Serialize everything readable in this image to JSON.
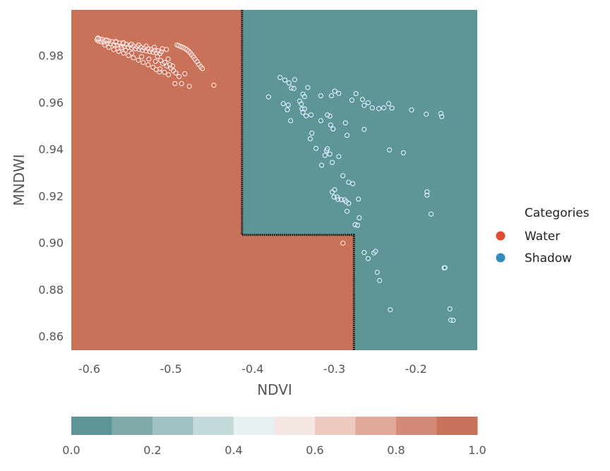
{
  "chart_data": {
    "type": "scatter",
    "xlabel": "NDVI",
    "ylabel": "MNDWI",
    "xlim": [
      -0.622,
      -0.125
    ],
    "ylim": [
      0.854,
      0.9995
    ],
    "xticks": [
      "-0.6",
      "-0.5",
      "-0.4",
      "-0.3",
      "-0.2"
    ],
    "yticks": [
      "0.86",
      "0.88",
      "0.90",
      "0.92",
      "0.94",
      "0.96",
      "0.98"
    ],
    "grid": false,
    "background": {
      "description": "decision regions: Water probability 1.0 (left/bottom), 0.0 (upper right)",
      "boundary": [
        [
          -0.413,
          0.9995
        ],
        [
          -0.413,
          0.9033
        ],
        [
          -0.276,
          0.9033
        ],
        [
          -0.276,
          0.854
        ]
      ],
      "water_color": "#c97159",
      "shadow_color": "#5e9698",
      "boundary_color": "#111111"
    },
    "legend": {
      "title": "Categories",
      "position": "right",
      "entries": [
        {
          "label": "Water",
          "color": "#e24a33"
        },
        {
          "label": "Shadow",
          "color": "#348abd"
        }
      ]
    },
    "series": [
      {
        "name": "Water",
        "marker_color": "#e24a33",
        "points": [
          [
            -0.5905,
            0.9867
          ],
          [
            -0.5895,
            0.9875
          ],
          [
            -0.5885,
            0.9862
          ],
          [
            -0.587,
            0.9871
          ],
          [
            -0.5855,
            0.9859
          ],
          [
            -0.584,
            0.9869
          ],
          [
            -0.582,
            0.9856
          ],
          [
            -0.5805,
            0.9865
          ],
          [
            -0.578,
            0.9853
          ],
          [
            -0.576,
            0.9862
          ],
          [
            -0.574,
            0.985
          ],
          [
            -0.572,
            0.9859
          ],
          [
            -0.5698,
            0.9847
          ],
          [
            -0.5675,
            0.9856
          ],
          [
            -0.5655,
            0.9844
          ],
          [
            -0.563,
            0.9853
          ],
          [
            -0.561,
            0.9841
          ],
          [
            -0.559,
            0.985
          ],
          [
            -0.557,
            0.9838
          ],
          [
            -0.5545,
            0.9847
          ],
          [
            -0.5525,
            0.9835
          ],
          [
            -0.55,
            0.9844
          ],
          [
            -0.548,
            0.9832
          ],
          [
            -0.546,
            0.984
          ],
          [
            -0.5435,
            0.9829
          ],
          [
            -0.5415,
            0.9838
          ],
          [
            -0.539,
            0.9826
          ],
          [
            -0.537,
            0.9835
          ],
          [
            -0.535,
            0.9823
          ],
          [
            -0.5325,
            0.9832
          ],
          [
            -0.5305,
            0.982
          ],
          [
            -0.528,
            0.9829
          ],
          [
            -0.526,
            0.9817
          ],
          [
            -0.524,
            0.9826
          ],
          [
            -0.522,
            0.9814
          ],
          [
            -0.52,
            0.9823
          ],
          [
            -0.5175,
            0.9811
          ],
          [
            -0.5155,
            0.982
          ],
          [
            -0.5135,
            0.9808
          ],
          [
            -0.5115,
            0.9817
          ],
          [
            -0.581,
            0.9845
          ],
          [
            -0.576,
            0.9835
          ],
          [
            -0.57,
            0.9825
          ],
          [
            -0.564,
            0.9818
          ],
          [
            -0.558,
            0.981
          ],
          [
            -0.552,
            0.98
          ],
          [
            -0.546,
            0.979
          ],
          [
            -0.54,
            0.978
          ],
          [
            -0.534,
            0.977
          ],
          [
            -0.528,
            0.976
          ],
          [
            -0.522,
            0.975
          ],
          [
            -0.518,
            0.974
          ],
          [
            -0.514,
            0.973
          ],
          [
            -0.565,
            0.983
          ],
          [
            -0.548,
            0.981
          ],
          [
            -0.536,
            0.9795
          ],
          [
            -0.527,
            0.9785
          ],
          [
            -0.519,
            0.9775
          ],
          [
            -0.51,
            0.9765
          ],
          [
            -0.505,
            0.9755
          ],
          [
            -0.5,
            0.9745
          ],
          [
            -0.497,
            0.9735
          ],
          [
            -0.494,
            0.9725
          ],
          [
            -0.49,
            0.971
          ],
          [
            -0.495,
            0.968
          ],
          [
            -0.487,
            0.968
          ],
          [
            -0.498,
            0.9755
          ],
          [
            -0.5135,
            0.9742
          ],
          [
            -0.508,
            0.9728
          ],
          [
            -0.503,
            0.9718
          ],
          [
            -0.4925,
            0.9845
          ],
          [
            -0.4905,
            0.9842
          ],
          [
            -0.4885,
            0.9839
          ],
          [
            -0.4865,
            0.9836
          ],
          [
            -0.4845,
            0.9833
          ],
          [
            -0.4825,
            0.9829
          ],
          [
            -0.4805,
            0.9825
          ],
          [
            -0.4785,
            0.9819
          ],
          [
            -0.4765,
            0.9812
          ],
          [
            -0.4745,
            0.9803
          ],
          [
            -0.4725,
            0.9794
          ],
          [
            -0.4705,
            0.9784
          ],
          [
            -0.468,
            0.9773
          ],
          [
            -0.466,
            0.9762
          ],
          [
            -0.4635,
            0.9752
          ],
          [
            -0.4615,
            0.9744
          ],
          [
            -0.483,
            0.9722
          ],
          [
            -0.4775,
            0.9668
          ],
          [
            -0.4475,
            0.9673
          ],
          [
            -0.5895,
            0.9872
          ],
          [
            -0.5785,
            0.9866
          ],
          [
            -0.5675,
            0.986
          ],
          [
            -0.5585,
            0.9855
          ],
          [
            -0.5485,
            0.9849
          ],
          [
            -0.5395,
            0.9845
          ],
          [
            -0.5305,
            0.984
          ],
          [
            -0.5205,
            0.9835
          ],
          [
            -0.5105,
            0.9829
          ],
          [
            -0.5055,
            0.9826
          ],
          [
            -0.5125,
            0.9779
          ],
          [
            -0.5075,
            0.9771
          ],
          [
            -0.5015,
            0.9761
          ],
          [
            -0.5035,
            0.9785
          ],
          [
            -0.5165,
            0.9796
          ],
          [
            -0.5555,
            0.9822
          ],
          [
            -0.5605,
            0.9833
          ],
          [
            -0.2895,
            0.8998
          ]
        ]
      },
      {
        "name": "Shadow",
        "marker_color": "#348abd",
        "points": [
          [
            -0.3805,
            0.9623
          ],
          [
            -0.3665,
            0.9706
          ],
          [
            -0.3605,
            0.9695
          ],
          [
            -0.3555,
            0.9683
          ],
          [
            -0.3525,
            0.9661
          ],
          [
            -0.3485,
            0.9697
          ],
          [
            -0.3495,
            0.9659
          ],
          [
            -0.3565,
            0.9588
          ],
          [
            -0.3575,
            0.9568
          ],
          [
            -0.3625,
            0.9594
          ],
          [
            -0.3535,
            0.9521
          ],
          [
            -0.3425,
            0.9605
          ],
          [
            -0.3405,
            0.9593
          ],
          [
            -0.3395,
            0.9572
          ],
          [
            -0.3385,
            0.9556
          ],
          [
            -0.3365,
            0.9572
          ],
          [
            -0.3345,
            0.9542
          ],
          [
            -0.3385,
            0.9635
          ],
          [
            -0.3325,
            0.9663
          ],
          [
            -0.3285,
            0.9546
          ],
          [
            -0.3365,
            0.9624
          ],
          [
            -0.3275,
            0.9468
          ],
          [
            -0.3295,
            0.9444
          ],
          [
            -0.3225,
            0.9403
          ],
          [
            -0.3165,
            0.9521
          ],
          [
            -0.3115,
            0.9373
          ],
          [
            -0.3095,
            0.9393
          ],
          [
            -0.3155,
            0.9331
          ],
          [
            -0.3085,
            0.9401
          ],
          [
            -0.3055,
            0.9379
          ],
          [
            -0.3025,
            0.9343
          ],
          [
            -0.3015,
            0.9486
          ],
          [
            -0.3055,
            0.9541
          ],
          [
            -0.3085,
            0.9546
          ],
          [
            -0.3045,
            0.9503
          ],
          [
            -0.3165,
            0.9628
          ],
          [
            -0.2995,
            0.9648
          ],
          [
            -0.2945,
            0.9638
          ],
          [
            -0.3035,
            0.9628
          ],
          [
            -0.2945,
            0.9368
          ],
          [
            -0.2895,
            0.9286
          ],
          [
            -0.2865,
            0.9512
          ],
          [
            -0.2845,
            0.9459
          ],
          [
            -0.2995,
            0.9226
          ],
          [
            -0.3005,
            0.9195
          ],
          [
            -0.3025,
            0.9216
          ],
          [
            -0.2965,
            0.9195
          ],
          [
            -0.2955,
            0.9185
          ],
          [
            -0.2915,
            0.9184
          ],
          [
            -0.2875,
            0.9183
          ],
          [
            -0.2855,
            0.9175
          ],
          [
            -0.2845,
            0.9134
          ],
          [
            -0.2825,
            0.9258
          ],
          [
            -0.2825,
            0.9168
          ],
          [
            -0.2775,
            0.9252
          ],
          [
            -0.2745,
            0.9077
          ],
          [
            -0.2715,
            0.9074
          ],
          [
            -0.2695,
            0.9106
          ],
          [
            -0.2705,
            0.9186
          ],
          [
            -0.2785,
            0.9609
          ],
          [
            -0.2735,
            0.9637
          ],
          [
            -0.2655,
            0.9612
          ],
          [
            -0.2635,
            0.9587
          ],
          [
            -0.2585,
            0.9598
          ],
          [
            -0.2535,
            0.9576
          ],
          [
            -0.2635,
            0.9484
          ],
          [
            -0.2455,
            0.9573
          ],
          [
            -0.2395,
            0.9576
          ],
          [
            -0.2335,
            0.9594
          ],
          [
            -0.2295,
            0.9575
          ],
          [
            -0.2325,
            0.9396
          ],
          [
            -0.2155,
            0.9384
          ],
          [
            -0.2055,
            0.9567
          ],
          [
            -0.1875,
            0.9549
          ],
          [
            -0.1695,
            0.9552
          ],
          [
            -0.1685,
            0.9539
          ],
          [
            -0.1865,
            0.9217
          ],
          [
            -0.1865,
            0.9203
          ],
          [
            -0.1815,
            0.9122
          ],
          [
            -0.2635,
            0.8958
          ],
          [
            -0.2585,
            0.8932
          ],
          [
            -0.2515,
            0.8956
          ],
          [
            -0.2495,
            0.8963
          ],
          [
            -0.2475,
            0.8873
          ],
          [
            -0.2445,
            0.8838
          ],
          [
            -0.2315,
            0.8713
          ],
          [
            -0.1655,
            0.8892
          ],
          [
            -0.1645,
            0.8893
          ],
          [
            -0.1585,
            0.8717
          ],
          [
            -0.1575,
            0.8669
          ],
          [
            -0.1545,
            0.8668
          ]
        ]
      }
    ],
    "colorbar": {
      "ticks": [
        "0.0",
        "0.2",
        "0.4",
        "0.6",
        "0.8",
        "1.0"
      ],
      "range": [
        0,
        1
      ],
      "colors": [
        "#5e9698",
        "#80a9ab",
        "#a2c1c2",
        "#c5dada",
        "#e8f0f1",
        "#f6e6e3",
        "#edc9c0",
        "#e1a999",
        "#d48a76",
        "#c97159"
      ]
    }
  }
}
